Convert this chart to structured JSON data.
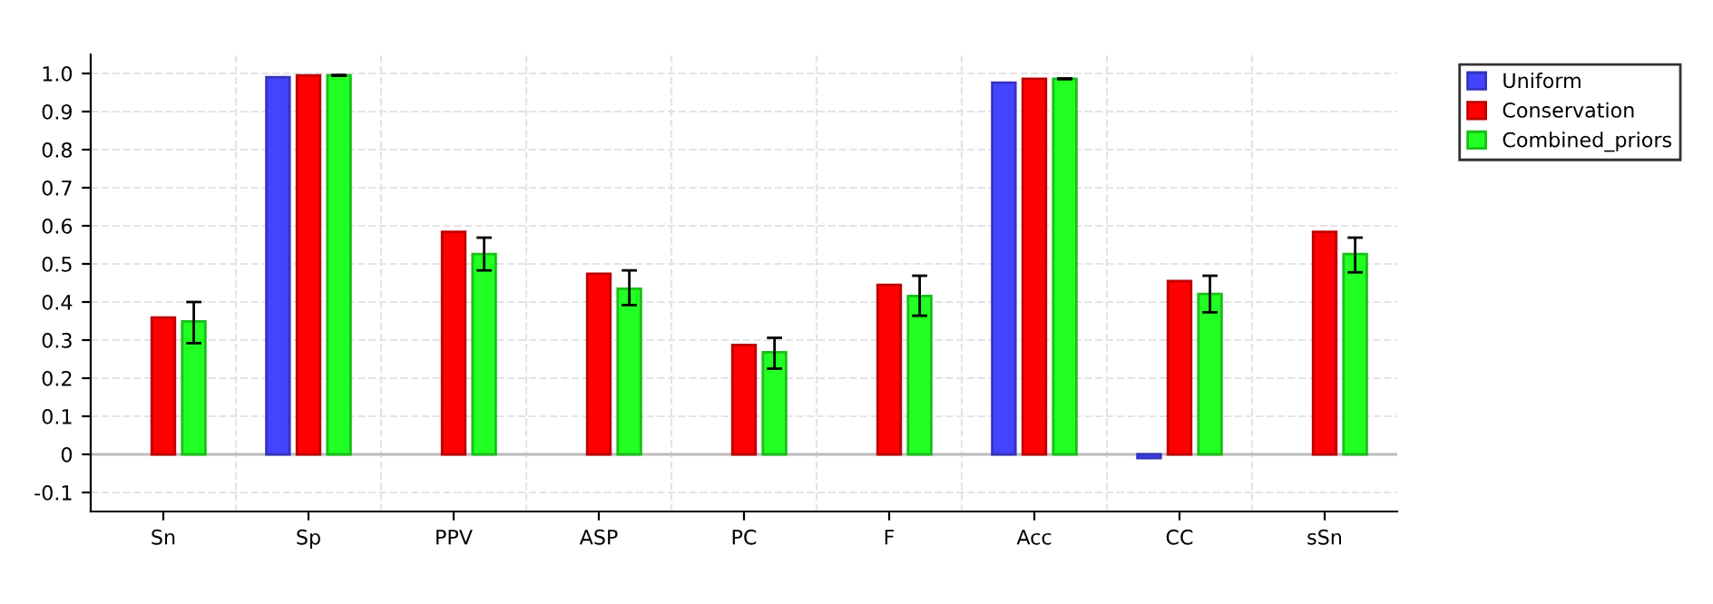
{
  "chart_data": {
    "type": "bar",
    "categories": [
      "Sn",
      "Sp",
      "PPV",
      "ASP",
      "PC",
      "F",
      "Acc",
      "CC",
      "sSn"
    ],
    "series": [
      {
        "name": "Uniform",
        "color": "#4444ff",
        "values": [
          null,
          0.99,
          null,
          null,
          null,
          null,
          0.976,
          -0.01,
          null
        ]
      },
      {
        "name": "Conservation",
        "color": "#ff0000",
        "values": [
          0.359,
          0.995,
          0.584,
          0.474,
          0.287,
          0.445,
          0.986,
          0.455,
          0.584
        ]
      },
      {
        "name": "Combined_priors",
        "color": "#22ff22",
        "values": [
          0.349,
          0.995,
          0.526,
          0.435,
          0.268,
          0.416,
          0.986,
          0.421,
          0.526
        ],
        "errors": [
          [
            0.292,
            0.4
          ],
          [
            0.994,
            0.996
          ],
          [
            0.483,
            0.569
          ],
          [
            0.392,
            0.483
          ],
          [
            0.225,
            0.306
          ],
          [
            0.364,
            0.469
          ],
          [
            0.985,
            0.987
          ],
          [
            0.373,
            0.469
          ],
          [
            0.478,
            0.569
          ]
        ]
      }
    ],
    "ylim": [
      -0.15,
      1.05
    ],
    "yticks": [
      -0.1,
      0,
      0.1,
      0.2,
      0.3,
      0.4,
      0.5,
      0.6,
      0.7,
      0.8,
      0.9,
      {
        "value": 1.0,
        "label": "1.0"
      }
    ],
    "grid": true,
    "legend": "top right"
  }
}
